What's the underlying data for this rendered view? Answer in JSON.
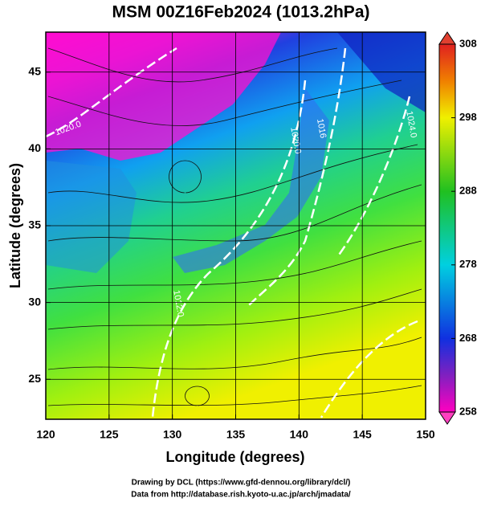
{
  "title": "MSM 00Z16Feb2024 (1013.2hPa)",
  "x_axis": {
    "label": "Longitude (degrees)",
    "lim": [
      120,
      150
    ],
    "ticks": [
      120,
      125,
      130,
      135,
      140,
      145,
      150
    ]
  },
  "y_axis": {
    "label": "Latitude  (degrees)",
    "lim": [
      22.4,
      47.6
    ],
    "ticks": [
      25,
      30,
      35,
      40,
      45
    ]
  },
  "colorbar": {
    "lim": [
      258,
      308
    ],
    "ticks": [
      258,
      268,
      278,
      288,
      298,
      308
    ]
  },
  "contour_labels": [
    "1020.0",
    "1020.0",
    "1016",
    "1024.0",
    "1012.0"
  ],
  "credits": [
    "Drawing by DCL (https://www.gfd-dennou.org/library/dcl/)",
    "Data from http://database.rish.kyoto-u.ac.jp/arch/jmadata/"
  ]
}
